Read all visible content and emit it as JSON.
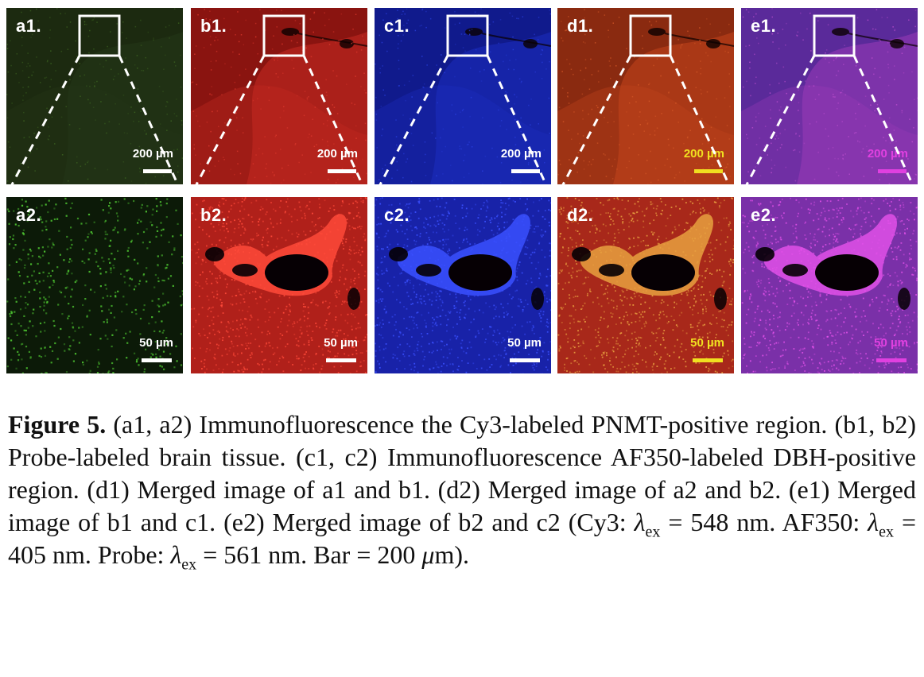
{
  "figure": {
    "panels": [
      {
        "id": "a1",
        "label": "a1.",
        "scale": "200 µm",
        "bg": "#1c2a10",
        "tissue": "#243618",
        "dots": "#3f6a22",
        "text_color": "#ffffff",
        "bar_color": "#ffffff",
        "row": "top"
      },
      {
        "id": "b1",
        "label": "b1.",
        "scale": "200 µm",
        "bg": "#8a1410",
        "tissue": "#c62a22",
        "dots": "#e03a2e",
        "text_color": "#ffffff",
        "bar_color": "#ffffff",
        "row": "top"
      },
      {
        "id": "c1",
        "label": "c1.",
        "scale": "200 µm",
        "bg": "#101a8c",
        "tissue": "#1c2ec0",
        "dots": "#2a40e0",
        "text_color": "#ffffff",
        "bar_color": "#ffffff",
        "row": "top"
      },
      {
        "id": "d1",
        "label": "d1.",
        "scale": "200 µm",
        "bg": "#8a2a10",
        "tissue": "#c4441c",
        "dots": "#d65a28",
        "text_color": "#f0e020",
        "bar_color": "#f0e020",
        "row": "top"
      },
      {
        "id": "e1",
        "label": "e1.",
        "scale": "200 µm",
        "bg": "#5a2a9a",
        "tissue": "#9a3ab8",
        "dots": "#c050d0",
        "text_color": "#e040e0",
        "bar_color": "#e040e0",
        "row": "top"
      },
      {
        "id": "a2",
        "label": "a2.",
        "scale": "50 µm",
        "bg": "#0c1a08",
        "tissue": "#142a0c",
        "dots": "#4cc030",
        "text_color": "#ffffff",
        "bar_color": "#ffffff",
        "row": "bottom"
      },
      {
        "id": "b2",
        "label": "b2.",
        "scale": "50 µm",
        "bg": "#b0201a",
        "tissue": "#d8302a",
        "dots": "#ff4a3a",
        "text_color": "#ffffff",
        "bar_color": "#ffffff",
        "row": "bottom"
      },
      {
        "id": "c2",
        "label": "c2.",
        "scale": "50 µm",
        "bg": "#1822a8",
        "tissue": "#2030d0",
        "dots": "#3a50ff",
        "text_color": "#ffffff",
        "bar_color": "#ffffff",
        "row": "bottom"
      },
      {
        "id": "d2",
        "label": "d2.",
        "scale": "50 µm",
        "bg": "#a8281a",
        "tissue": "#d0402a",
        "dots": "#e8a040",
        "text_color": "#f0e020",
        "bar_color": "#f0e020",
        "row": "bottom"
      },
      {
        "id": "e2",
        "label": "e2.",
        "scale": "50 µm",
        "bg": "#7a30a8",
        "tissue": "#b040c0",
        "dots": "#e050e8",
        "text_color": "#e040e0",
        "bar_color": "#e040e0",
        "row": "bottom"
      }
    ]
  },
  "caption": {
    "fig_label": "Figure 5.",
    "t1": " (a1, a2) Immunofluorescence the Cy3-labeled PNMT-positive region. (b1, b2) Probe-labeled brain tissue. (c1, c2) Immunofluorescence AF350-labeled DBH-positive region. (d1) Merged image of a1 and b1. (d2) Merged image of a2 and b2. (e1) Merged image of b1 and c1. (e2) Merged image of b2 and c2 (Cy3: ",
    "lambda1": "λ",
    "sub1": "ex",
    "t2": " = 548 nm. AF350: ",
    "lambda2": "λ",
    "sub2": "ex",
    "t3": " = 405 nm. Probe: ",
    "lambda3": "λ",
    "sub3": "ex",
    "t4": " = 561 nm. Bar = 200 ",
    "mu": "μ",
    "t5": "m)."
  }
}
